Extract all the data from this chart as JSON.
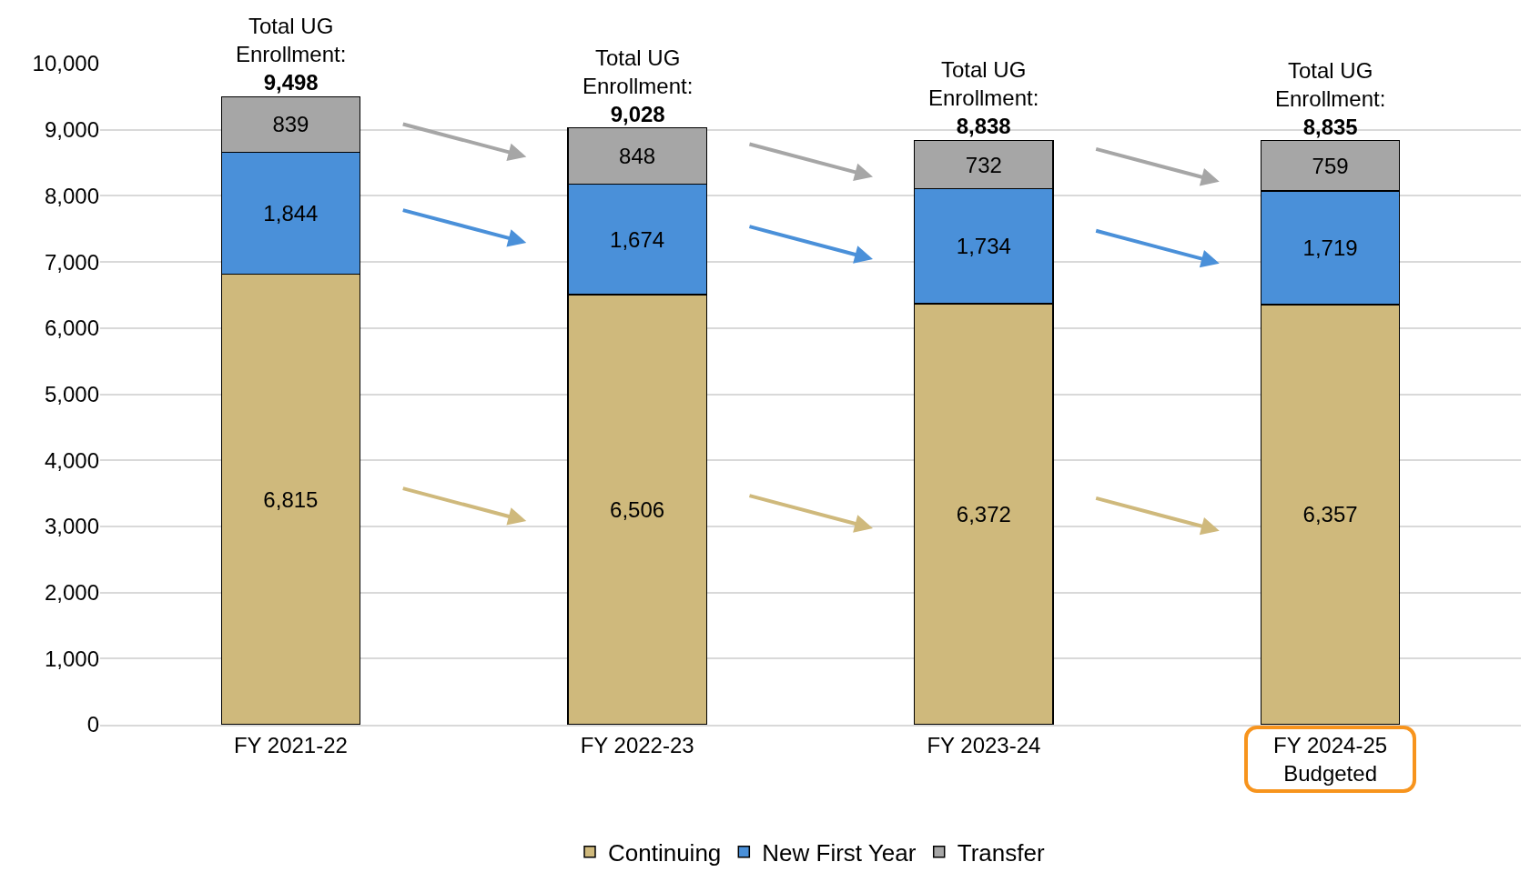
{
  "chart_data": {
    "type": "bar",
    "stacked": true,
    "categories": [
      "FY 2021-22",
      "FY 2022-23",
      "FY 2023-24",
      "FY 2024-25 Budgeted"
    ],
    "series": [
      {
        "name": "Continuing",
        "color": "#cfb97c",
        "values": [
          6815,
          6506,
          6372,
          6357
        ],
        "value_labels": [
          "6,815",
          "6,506",
          "6,372",
          "6,357"
        ]
      },
      {
        "name": "New First Year",
        "color": "#4a90d9",
        "values": [
          1844,
          1674,
          1734,
          1719
        ],
        "value_labels": [
          "1,844",
          "1,674",
          "1,734",
          "1,719"
        ]
      },
      {
        "name": "Transfer",
        "color": "#a6a6a6",
        "values": [
          839,
          848,
          732,
          759
        ],
        "value_labels": [
          "839",
          "848",
          "732",
          "759"
        ]
      }
    ],
    "totals": [
      "9,498",
      "9,028",
      "8,838",
      "8,835"
    ],
    "annotations": [
      {
        "text": "Total UG Enrollment:",
        "x": "FY 2021-22",
        "y": 9498
      },
      {
        "text": "Total UG Enrollment:",
        "x": "FY 2022-23",
        "y": 9028
      },
      {
        "text": "Total UG Enrollment:",
        "x": "FY 2023-24",
        "y": 8838
      },
      {
        "text": "Total UG Enrollment:",
        "x": "FY 2024-25 Budgeted",
        "y": 8835
      }
    ],
    "ylim": [
      0,
      10000
    ],
    "yticks": [
      0,
      {
        "value": 1000,
        "label": "1,000"
      },
      {
        "value": 2000,
        "label": "2,000"
      },
      {
        "value": 3000,
        "label": "3,000"
      },
      {
        "value": 4000,
        "label": "4,000"
      },
      {
        "value": 5000,
        "label": "5,000"
      },
      {
        "value": 6000,
        "label": "6,000"
      },
      {
        "value": 7000,
        "label": "7,000"
      },
      {
        "value": 8000,
        "label": "8,000"
      },
      {
        "value": 9000,
        "label": "9,000"
      },
      {
        "value": 10000,
        "label": "10,000"
      }
    ],
    "grid": "y",
    "legend": "bottom"
  }
}
